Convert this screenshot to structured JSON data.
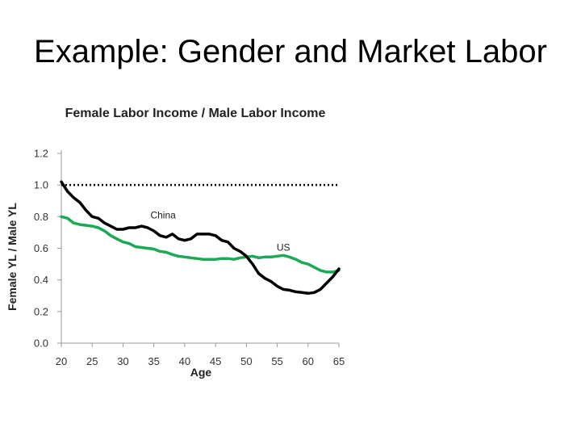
{
  "slide": {
    "title": "Example: Gender and Market Labor"
  },
  "chart_data": {
    "type": "line",
    "title": "Female Labor Income / Male Labor Income",
    "xlabel": "Age",
    "ylabel": "Female YL / Male YL",
    "xlim": [
      20,
      65
    ],
    "ylim": [
      0.0,
      1.2
    ],
    "x_ticks": [
      "20",
      "25",
      "30",
      "35",
      "40",
      "45",
      "50",
      "55",
      "60",
      "65"
    ],
    "y_ticks": [
      "0.0",
      "0.2",
      "0.4",
      "0.6",
      "0.8",
      "1.0",
      "1.2"
    ],
    "grid": false,
    "reference_line": {
      "y": 1.0,
      "style": "dotted",
      "color": "#000000"
    },
    "series": [
      {
        "name": "China",
        "color": "#000000",
        "x": [
          20,
          21,
          22,
          23,
          24,
          25,
          26,
          27,
          28,
          29,
          30,
          31,
          32,
          33,
          34,
          35,
          36,
          37,
          38,
          39,
          40,
          41,
          42,
          43,
          44,
          45,
          46,
          47,
          48,
          49,
          50,
          51,
          52,
          53,
          54,
          55,
          56,
          57,
          58,
          59,
          60,
          61,
          62,
          63,
          64,
          65
        ],
        "y": [
          1.02,
          0.96,
          0.92,
          0.89,
          0.84,
          0.8,
          0.79,
          0.76,
          0.74,
          0.72,
          0.72,
          0.73,
          0.73,
          0.74,
          0.73,
          0.71,
          0.68,
          0.67,
          0.69,
          0.66,
          0.65,
          0.66,
          0.69,
          0.69,
          0.69,
          0.68,
          0.65,
          0.64,
          0.6,
          0.58,
          0.55,
          0.5,
          0.44,
          0.41,
          0.39,
          0.36,
          0.34,
          0.335,
          0.325,
          0.32,
          0.315,
          0.32,
          0.34,
          0.38,
          0.42,
          0.47
        ]
      },
      {
        "name": "US",
        "color": "#1aaa55",
        "x": [
          20,
          21,
          22,
          23,
          24,
          25,
          26,
          27,
          28,
          29,
          30,
          31,
          32,
          33,
          34,
          35,
          36,
          37,
          38,
          39,
          40,
          41,
          42,
          43,
          44,
          45,
          46,
          47,
          48,
          49,
          50,
          51,
          52,
          53,
          54,
          55,
          56,
          57,
          58,
          59,
          60,
          61,
          62,
          63,
          64,
          65
        ],
        "y": [
          0.8,
          0.79,
          0.76,
          0.75,
          0.745,
          0.74,
          0.73,
          0.71,
          0.68,
          0.66,
          0.64,
          0.63,
          0.61,
          0.605,
          0.6,
          0.595,
          0.58,
          0.575,
          0.56,
          0.55,
          0.545,
          0.54,
          0.535,
          0.53,
          0.53,
          0.53,
          0.535,
          0.535,
          0.53,
          0.54,
          0.545,
          0.55,
          0.54,
          0.545,
          0.545,
          0.55,
          0.555,
          0.545,
          0.53,
          0.51,
          0.5,
          0.48,
          0.46,
          0.45,
          0.45,
          0.46
        ]
      }
    ]
  }
}
